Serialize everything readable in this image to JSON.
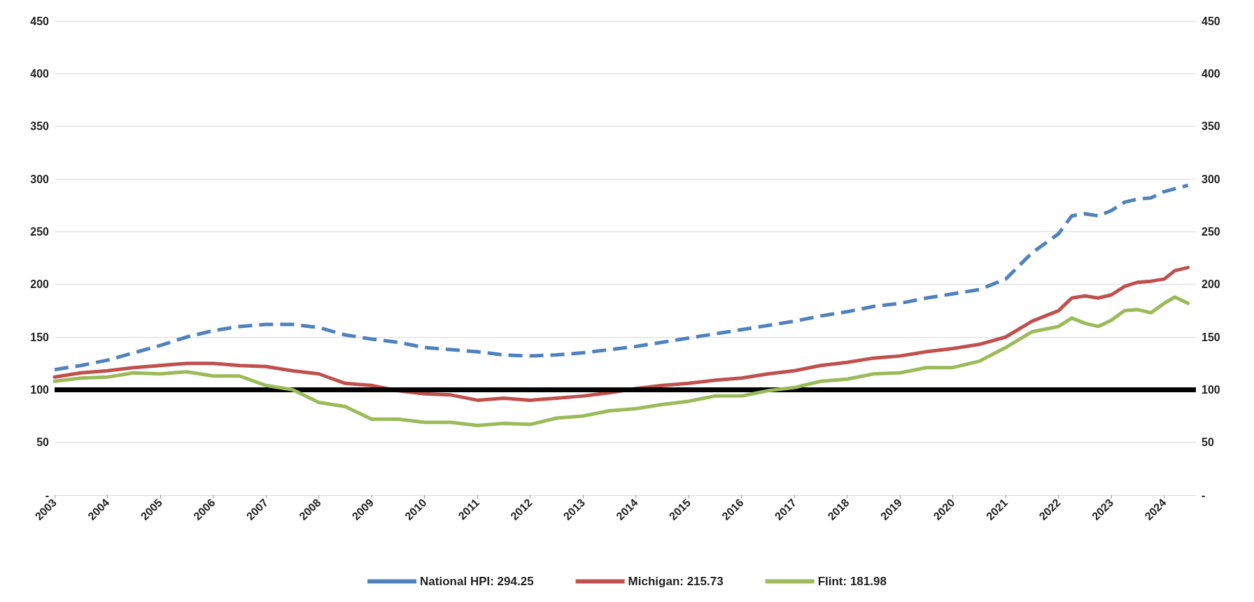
{
  "chart_data": {
    "type": "line",
    "xlim": [
      2003,
      2024.6
    ],
    "xticks": [
      2003,
      2004,
      2005,
      2006,
      2007,
      2008,
      2009,
      2010,
      2011,
      2012,
      2013,
      2014,
      2015,
      2016,
      2017,
      2018,
      2019,
      2020,
      2021,
      2022,
      2023,
      2024
    ],
    "ylim": [
      0,
      450
    ],
    "yticks": [
      {
        "value": 0,
        "label": "-"
      },
      50,
      100,
      150,
      200,
      250,
      300,
      350,
      400,
      450
    ],
    "y2lim": [
      0,
      450
    ],
    "y2ticks": [
      {
        "value": 0,
        "label": "-"
      },
      50,
      100,
      150,
      200,
      250,
      300,
      350,
      400,
      450
    ],
    "grid": "y",
    "legend": "bottom",
    "marker": "none",
    "ref_lines": [
      {
        "axis": "y",
        "value": 100,
        "color": "#000000"
      }
    ],
    "series": [
      {
        "name": "National HPI: 294.25",
        "color": "#4f81bd",
        "line_style": "dashed",
        "x": [
          2003,
          2003.5,
          2004,
          2004.5,
          2005,
          2005.5,
          2006,
          2006.5,
          2007,
          2007.5,
          2008,
          2008.5,
          2009,
          2009.5,
          2010,
          2010.5,
          2011,
          2011.5,
          2012,
          2012.5,
          2013,
          2013.5,
          2014,
          2014.5,
          2015,
          2015.5,
          2016,
          2016.5,
          2017,
          2017.5,
          2018,
          2018.5,
          2019,
          2019.5,
          2020,
          2020.5,
          2021,
          2021.5,
          2022,
          2022.25,
          2022.5,
          2022.75,
          2023,
          2023.25,
          2023.5,
          2023.75,
          2024,
          2024.45
        ],
        "values": [
          119,
          123,
          128,
          135,
          142,
          150,
          156,
          160,
          162,
          162,
          159,
          152,
          148,
          145,
          140,
          138,
          136,
          133,
          132,
          133,
          135,
          138,
          141,
          145,
          149,
          153,
          157,
          161,
          165,
          170,
          174,
          179,
          182,
          187,
          191,
          195,
          205,
          230,
          248,
          265,
          267,
          265,
          270,
          278,
          281,
          282,
          288,
          294
        ]
      },
      {
        "name": "Michigan: 215.73",
        "color": "#c0504d",
        "line_style": "solid",
        "x": [
          2003,
          2003.5,
          2004,
          2004.5,
          2005,
          2005.5,
          2006,
          2006.5,
          2007,
          2007.5,
          2008,
          2008.5,
          2009,
          2009.5,
          2010,
          2010.5,
          2011,
          2011.5,
          2012,
          2012.5,
          2013,
          2013.5,
          2014,
          2014.5,
          2015,
          2015.5,
          2016,
          2016.5,
          2017,
          2017.5,
          2018,
          2018.5,
          2019,
          2019.5,
          2020,
          2020.5,
          2021,
          2021.5,
          2022,
          2022.25,
          2022.5,
          2022.75,
          2023,
          2023.25,
          2023.5,
          2023.75,
          2024,
          2024.2,
          2024.45
        ],
        "values": [
          112,
          116,
          118,
          121,
          123,
          125,
          125,
          123,
          122,
          118,
          115,
          106,
          104,
          99,
          96,
          95,
          90,
          92,
          90,
          92,
          94,
          97,
          101,
          104,
          106,
          109,
          111,
          115,
          118,
          123,
          126,
          130,
          132,
          136,
          139,
          143,
          150,
          165,
          175,
          187,
          189,
          187,
          190,
          198,
          202,
          203,
          205,
          213,
          216
        ]
      },
      {
        "name": "Flint: 181.98",
        "color": "#9bbb59",
        "line_style": "solid",
        "x": [
          2003,
          2003.5,
          2004,
          2004.5,
          2005,
          2005.5,
          2006,
          2006.5,
          2007,
          2007.5,
          2008,
          2008.5,
          2009,
          2009.5,
          2010,
          2010.5,
          2011,
          2011.5,
          2012,
          2012.5,
          2013,
          2013.5,
          2014,
          2014.5,
          2015,
          2015.5,
          2016,
          2016.5,
          2017,
          2017.5,
          2018,
          2018.5,
          2019,
          2019.5,
          2020,
          2020.5,
          2021,
          2021.5,
          2022,
          2022.25,
          2022.5,
          2022.75,
          2023,
          2023.25,
          2023.5,
          2023.75,
          2024,
          2024.2,
          2024.45
        ],
        "values": [
          108,
          111,
          112,
          116,
          115,
          117,
          113,
          113,
          104,
          100,
          88,
          84,
          72,
          72,
          69,
          69,
          66,
          68,
          67,
          73,
          75,
          80,
          82,
          86,
          89,
          94,
          94,
          99,
          102,
          108,
          110,
          115,
          116,
          121,
          121,
          127,
          140,
          155,
          160,
          168,
          163,
          160,
          166,
          175,
          176,
          173,
          182,
          188,
          182
        ]
      }
    ]
  }
}
